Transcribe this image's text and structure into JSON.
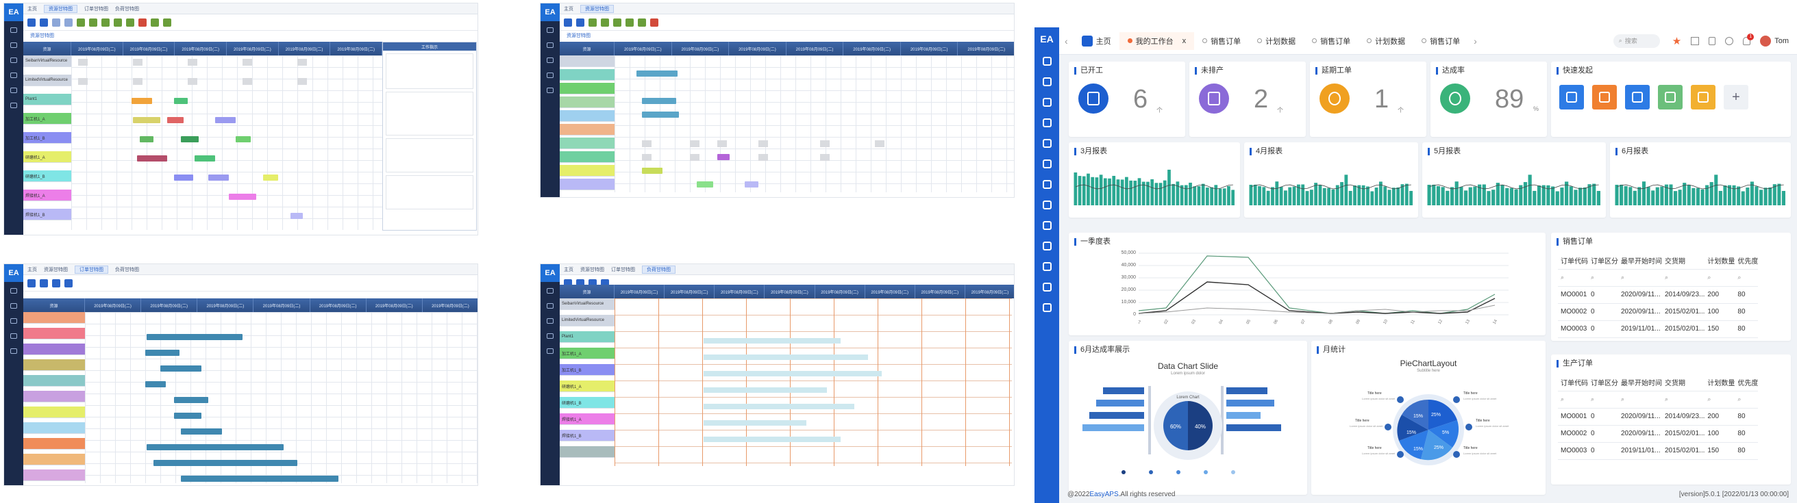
{
  "dashboard": {
    "nav": {
      "home": "主页",
      "tabs": [
        "我的工作台",
        "销售订单",
        "计划数据",
        "销售订单",
        "计划数据",
        "销售订单"
      ],
      "close": "x",
      "search_placeholder": "搜索",
      "user": "Tom",
      "badge": "1"
    },
    "kpis": [
      {
        "title": "已开工",
        "value": "6",
        "unit": "个",
        "color": "#1d5fd0"
      },
      {
        "title": "未排产",
        "value": "2",
        "unit": "个",
        "color": "#8a6ad8"
      },
      {
        "title": "延期工单",
        "value": "1",
        "unit": "个",
        "color": "#f0a020"
      },
      {
        "title": "达成率",
        "value": "89",
        "unit": "%",
        "color": "#3ab37a"
      }
    ],
    "quick_title": "快速发起",
    "quick_colors": [
      "#2d7be5",
      "#f08030",
      "#2d7be5",
      "#6bbf7b",
      "#f2b030"
    ],
    "mini_reports": [
      {
        "title": "3月报表"
      },
      {
        "title": "4月报表"
      },
      {
        "title": "5月报表"
      },
      {
        "title": "6月报表"
      }
    ],
    "quarter": {
      "title": "一季度表",
      "ylabels": [
        "50,000",
        "40,000",
        "30,000",
        "20,000",
        "10,000",
        "0"
      ]
    },
    "june": {
      "title": "6月达成率展示",
      "chart_title": "Data Chart Slide",
      "chart_sub": "Lorem ipsum dolor",
      "inner_label": "Lorem Chart",
      "pct_a": "60%",
      "pct_b": "40%"
    },
    "monthly": {
      "title": "月统计",
      "chart_title": "PieChartLayout",
      "chart_sub": "Subtitle here",
      "slices": [
        "25%",
        "5%",
        "25%",
        "15%",
        "15%",
        "15%"
      ],
      "item_title": "Title here",
      "item_text": "Lorem ipsum dolor sit amet"
    },
    "sales_table": {
      "title": "销售订单",
      "headers": [
        "订单代码",
        "订单区分",
        "最早开始时间",
        "交货期",
        "计划数量",
        "优先度"
      ],
      "rows": [
        [
          "MO0001",
          "0",
          "2020/09/11...",
          "2014/09/23...",
          "200",
          "80"
        ],
        [
          "MO0002",
          "0",
          "2020/09/11...",
          "2015/02/01...",
          "100",
          "80"
        ],
        [
          "MO0003",
          "0",
          "2019/11/01...",
          "2015/02/01...",
          "150",
          "80"
        ]
      ]
    },
    "prod_table": {
      "title": "生产订单",
      "headers": [
        "订单代码",
        "订单区分",
        "最早开始时间",
        "交货期",
        "计划数量",
        "优先度"
      ],
      "rows": [
        [
          "MO0001",
          "0",
          "2020/09/11...",
          "2014/09/23...",
          "200",
          "80"
        ],
        [
          "MO0002",
          "0",
          "2020/09/11...",
          "2015/02/01...",
          "100",
          "80"
        ],
        [
          "MO0003",
          "0",
          "2019/11/01...",
          "2015/02/01...",
          "150",
          "80"
        ]
      ]
    },
    "footer_left_a": "@2022",
    "footer_brand": "EasyAPS",
    "footer_left_b": ".All rights reserved",
    "footer_right": "[version]5.0.1 [2022/01/13 00:00:00]"
  },
  "gantt": {
    "tab_home": "主页",
    "tab_a": "资源甘特图",
    "tab_b": "订单甘特图",
    "tab_c": "负荷甘特图",
    "subtab": "资源甘特图",
    "col_head": "资源",
    "header_date": "2019年08月09日(二)",
    "popup_title": "工作指示",
    "resources": [
      "SeibanVirtualResource",
      "LimitedVirtualResource",
      "Plant1",
      "加工机1_A",
      "加工机1_B",
      "研磨机1_A",
      "研磨机1_B",
      "焊接机1_A",
      "焊接机1_B"
    ]
  }
}
